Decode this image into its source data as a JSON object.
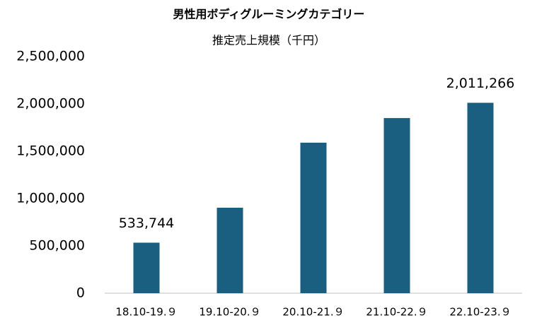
{
  "chart_data": {
    "type": "bar",
    "title": "男性用ボディグルーミングカテゴリー",
    "subtitle": "推定売上規模（千円）",
    "categories": [
      "18.10-19.９",
      "19.10-20.９",
      "20.10-21.９",
      "21.10-22.９",
      "22.10-23.９"
    ],
    "values": [
      533744,
      903000,
      1590000,
      1850000,
      2011266
    ],
    "value_labels": [
      "533,744",
      null,
      null,
      null,
      "2,011,266"
    ],
    "color": "#1a5e80",
    "ylim": [
      0,
      2500000
    ],
    "yticks": [
      0,
      {
        "value": 500000,
        "label": "500,000"
      },
      {
        "value": 1000000,
        "label": "1,000,000"
      },
      {
        "value": 1500000,
        "label": "1,500,000"
      },
      {
        "value": 2000000,
        "label": "2,000,000"
      },
      {
        "value": 2500000,
        "label": "2,500,000"
      }
    ],
    "grid": false
  }
}
